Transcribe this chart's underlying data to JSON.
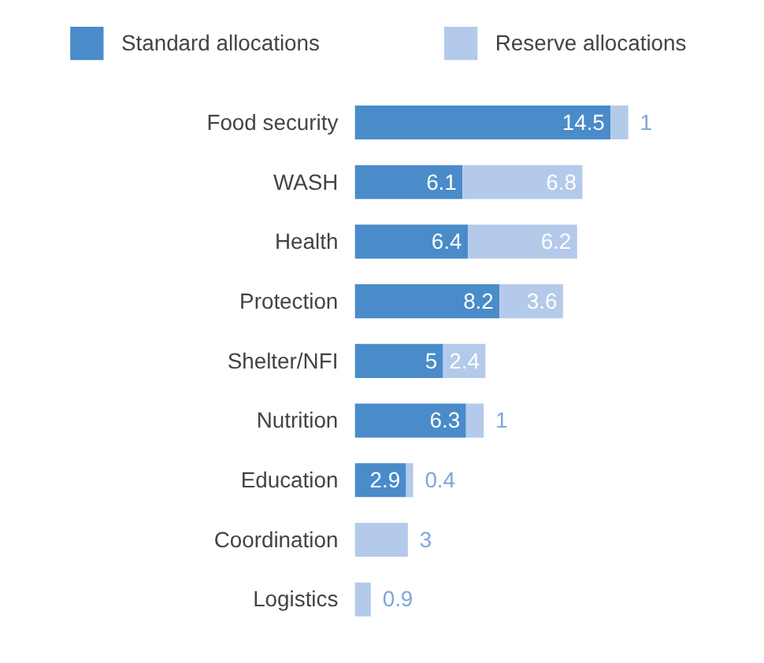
{
  "chart_data": {
    "type": "bar",
    "orientation": "horizontal",
    "stacked": true,
    "data_labels": true,
    "legend": "top",
    "grid": false,
    "categories": [
      "Food security",
      "WASH",
      "Health",
      "Protection",
      "Shelter/NFI",
      "Nutrition",
      "Education",
      "Coordination",
      "Logistics"
    ],
    "series": [
      {
        "name": "Standard allocations",
        "color": "#4a8bc9",
        "values": [
          14.5,
          6.1,
          6.4,
          8.2,
          5,
          6.3,
          2.9,
          null,
          null
        ]
      },
      {
        "name": "Reserve allocations",
        "color": "#b4caea",
        "values": [
          1,
          6.8,
          6.2,
          3.6,
          2.4,
          1,
          0.4,
          3,
          0.9
        ]
      }
    ]
  }
}
